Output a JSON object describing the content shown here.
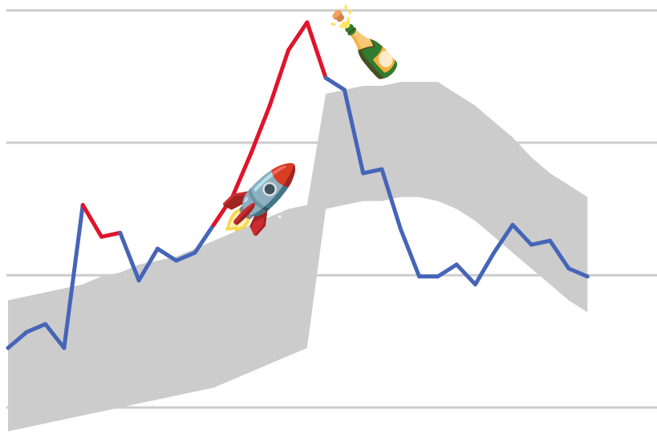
{
  "chart_data": {
    "type": "line",
    "title": "",
    "xlabel": "",
    "ylabel": "",
    "ylim": [
      0,
      100
    ],
    "grid": true,
    "gridlines_y": [
      0,
      33.3,
      66.7,
      100
    ],
    "x": [
      0,
      1,
      2,
      3,
      4,
      5,
      6,
      7,
      8,
      9,
      10,
      11,
      12,
      13,
      14,
      15,
      16,
      17,
      18,
      19,
      20,
      21,
      22,
      23,
      24,
      25,
      26,
      27,
      28,
      29,
      30,
      31
    ],
    "series": [
      {
        "values": [
          15,
          19,
          21,
          15,
          51,
          43,
          44,
          32,
          40,
          37,
          39,
          46,
          53,
          64,
          76,
          90,
          97,
          83,
          80,
          59,
          60,
          45,
          33,
          33,
          36,
          31,
          39,
          46,
          41,
          42,
          35,
          33
        ],
        "above_band_color": "#e0142a",
        "within_band_color": "#4565b8"
      }
    ],
    "band": {
      "upper": [
        27,
        28,
        29,
        30,
        31,
        33,
        34,
        36,
        37,
        38,
        40,
        42,
        44,
        46,
        48,
        50,
        51,
        79,
        80,
        81,
        81,
        82,
        82,
        82,
        79,
        76,
        72,
        68,
        63,
        59,
        56,
        53
      ],
      "lower": [
        -6,
        -5,
        -4,
        -3,
        -2,
        -1,
        0,
        1,
        2,
        3,
        4,
        5,
        7,
        9,
        11,
        13,
        15,
        50,
        51,
        52,
        52,
        53,
        53,
        52,
        50,
        47,
        43,
        39,
        35,
        31,
        27,
        24
      ],
      "color": "#cccccc"
    },
    "colors": {
      "grid": "#cccccc",
      "background": "#ffffff"
    },
    "annotations": [
      {
        "icon": "rocket-icon",
        "glyph": "🚀"
      },
      {
        "icon": "champagne-bottle-icon",
        "glyph": "🍾"
      }
    ]
  }
}
